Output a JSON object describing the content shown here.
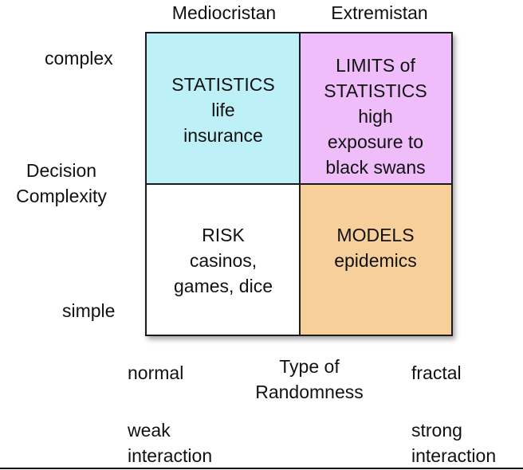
{
  "columns": {
    "left": "Mediocristan",
    "right": "Extremistan"
  },
  "y_axis": {
    "top": "complex",
    "title": "Decision Complexity",
    "bottom": "simple"
  },
  "quadrants": {
    "top_left": {
      "lines": [
        "STATISTICS",
        "life",
        "insurance"
      ],
      "color": "#bdf0f7"
    },
    "top_right": {
      "lines": [
        "LIMITS of",
        "STATISTICS",
        "high",
        "exposure to",
        "black swans"
      ],
      "color": "#efbdfa"
    },
    "bottom_left": {
      "lines": [
        "RISK",
        "casinos,",
        "games, dice"
      ],
      "color": "#ffffff"
    },
    "bottom_right": {
      "lines": [
        "MODELS",
        "epidemics"
      ],
      "color": "#f6cf9b"
    }
  },
  "x_axis": {
    "left": "normal",
    "title": "Type of Randomness",
    "right": "fractal",
    "left_sub": "weak interaction",
    "right_sub": "strong interaction"
  }
}
